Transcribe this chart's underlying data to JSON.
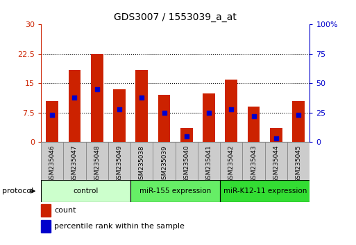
{
  "title": "GDS3007 / 1553039_a_at",
  "samples": [
    "GSM235046",
    "GSM235047",
    "GSM235048",
    "GSM235049",
    "GSM235038",
    "GSM235039",
    "GSM235040",
    "GSM235041",
    "GSM235042",
    "GSM235043",
    "GSM235044",
    "GSM235045"
  ],
  "count_values": [
    10.5,
    18.5,
    22.5,
    13.5,
    18.5,
    12.0,
    3.5,
    12.5,
    16.0,
    9.0,
    3.5,
    10.5
  ],
  "percentile_values": [
    23.0,
    38.0,
    45.0,
    28.0,
    38.0,
    25.0,
    5.0,
    25.0,
    28.0,
    22.0,
    3.0,
    23.0
  ],
  "bar_color": "#cc2200",
  "dot_color": "#0000cc",
  "ylim_left": [
    0,
    30
  ],
  "ylim_right": [
    0,
    100
  ],
  "yticks_left": [
    0,
    7.5,
    15,
    22.5,
    30
  ],
  "yticks_right": [
    0,
    25,
    50,
    75,
    100
  ],
  "ytick_labels_left": [
    "0",
    "7.5",
    "15",
    "22.5",
    "30"
  ],
  "ytick_labels_right": [
    "0",
    "25",
    "50",
    "75",
    "100%"
  ],
  "groups": [
    {
      "label": "control",
      "indices": [
        0,
        1,
        2,
        3
      ],
      "color": "#ccffcc"
    },
    {
      "label": "miR-155 expression",
      "indices": [
        4,
        5,
        6,
        7
      ],
      "color": "#66ee66"
    },
    {
      "label": "miR-K12-11 expression",
      "indices": [
        8,
        9,
        10,
        11
      ],
      "color": "#33dd33"
    }
  ],
  "protocol_label": "protocol",
  "legend_count_color": "#cc2200",
  "legend_dot_color": "#0000cc",
  "legend_count_label": "count",
  "legend_dot_label": "percentile rank within the sample",
  "bar_width": 0.55,
  "left_axis_color": "#cc2200",
  "right_axis_color": "#0000cc",
  "sample_box_color": "#cccccc",
  "sample_box_edge": "#888888",
  "grid_yticks": [
    7.5,
    15,
    22.5
  ]
}
